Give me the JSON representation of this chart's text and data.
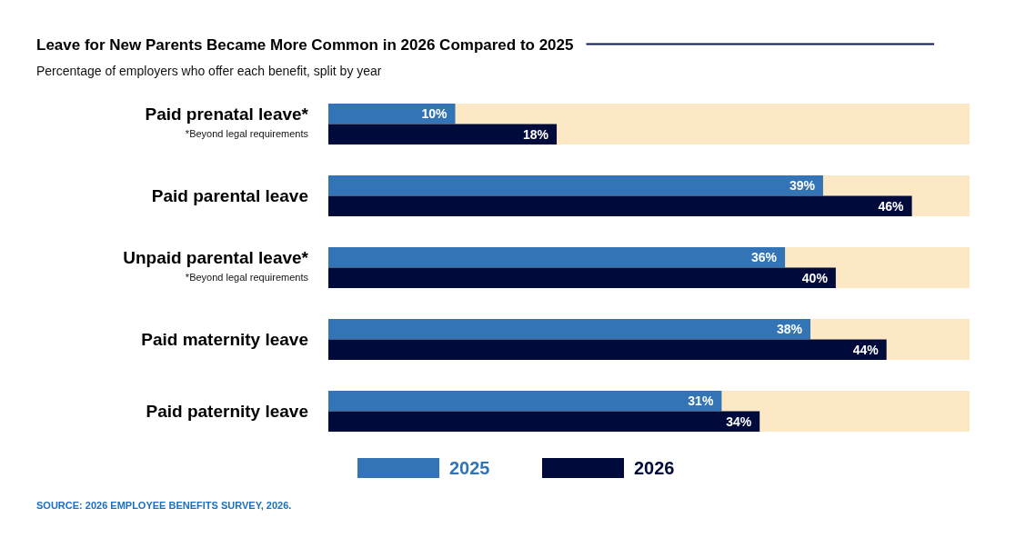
{
  "chart_data": {
    "type": "bar",
    "orientation": "horizontal",
    "title": "Leave for New Parents Became More Common in 2026 Compared to 2025",
    "subtitle": "Percentage of employers who offer each benefit, split by year",
    "categories": [
      "Paid prenatal leave*",
      "Paid parental leave",
      "Unpaid parental leave*",
      "Paid maternity leave",
      "Paid paternity leave"
    ],
    "series": [
      {
        "name": "2025",
        "color": "#3274b5",
        "values": [
          10,
          39,
          36,
          38,
          31
        ],
        "value_labels": [
          "10%",
          "39%",
          "36%",
          "38%",
          "31%"
        ]
      },
      {
        "name": "2026",
        "color": "#000b3c",
        "values": [
          18,
          46,
          40,
          44,
          34
        ],
        "value_labels": [
          "18%",
          "46%",
          "40%",
          "44%",
          "34%"
        ]
      }
    ],
    "bands": [
      {
        "axis": "y",
        "from": "Paid prenatal leave*",
        "to": "Paid prenatal leave*",
        "color": "#fde8c5"
      },
      {
        "axis": "y",
        "from": "Paid parental leave",
        "to": "Paid parental leave",
        "color": "#fde8c5"
      },
      {
        "axis": "y",
        "from": "Unpaid parental leave*",
        "to": "Unpaid parental leave*",
        "color": "#fde8c5"
      },
      {
        "axis": "y",
        "from": "Paid maternity leave",
        "to": "Paid maternity leave",
        "color": "#fde8c5"
      },
      {
        "axis": "y",
        "from": "Paid paternity leave",
        "to": "Paid paternity leave",
        "color": "#fde8c5"
      }
    ],
    "legend": "bottom",
    "tick_labels": "y",
    "annotations": [
      "*Beyond legal requirements",
      "*Beyond legal requirements",
      "SOURCE: 2026 EMPLOYEE BENEFITS SURVEY, 2026."
    ]
  }
}
